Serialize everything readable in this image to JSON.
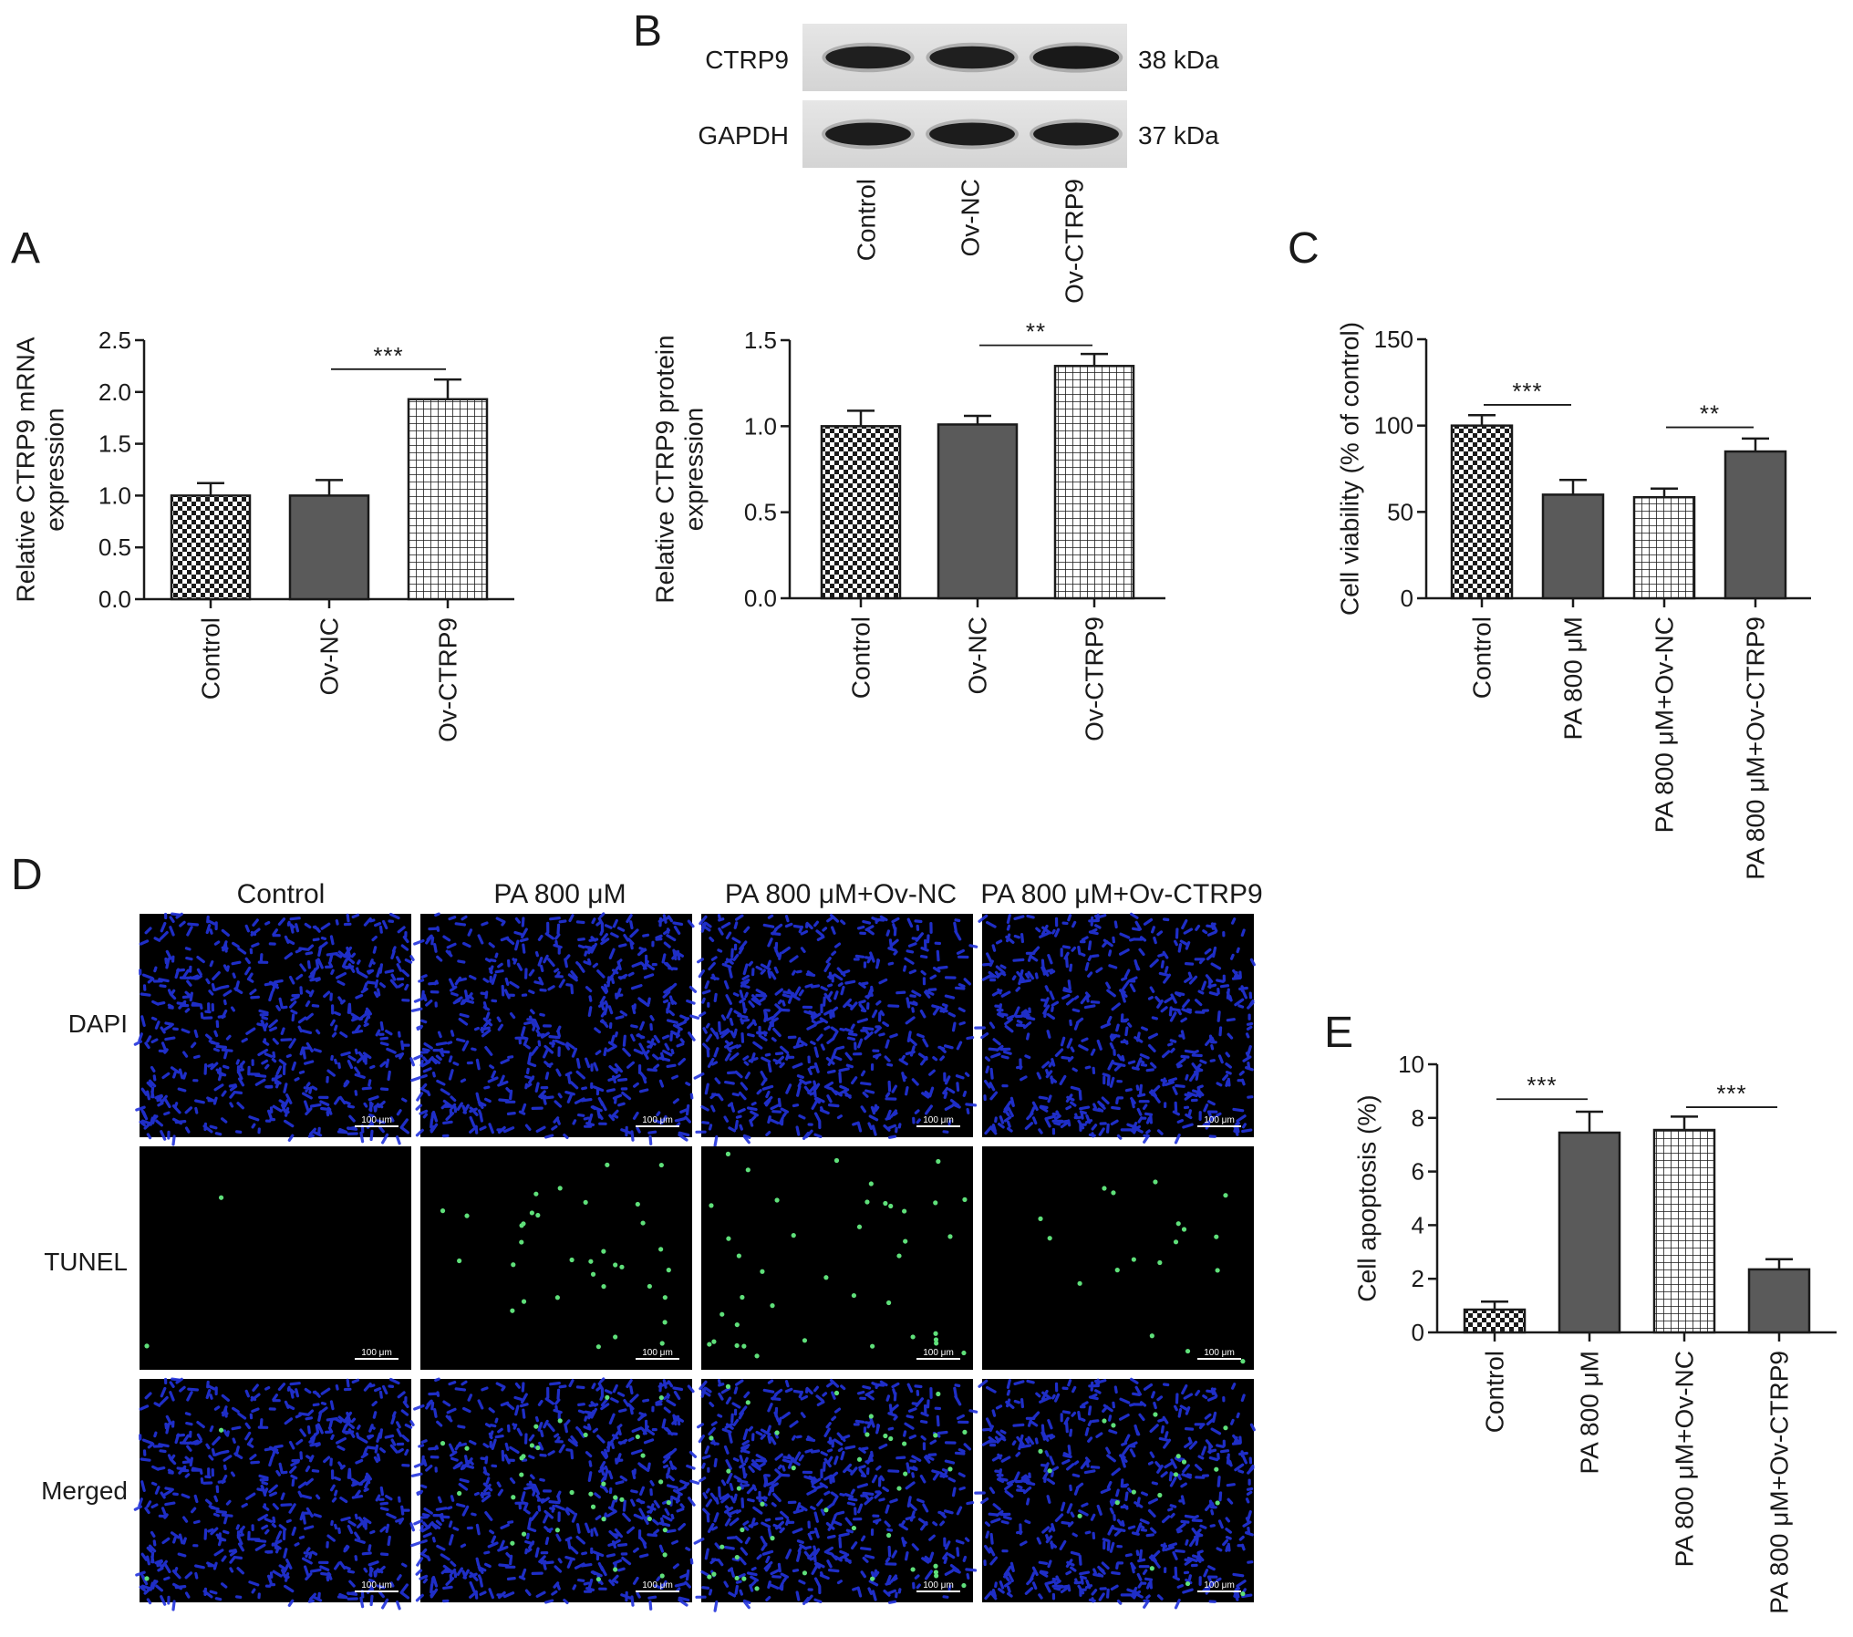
{
  "figure": {
    "colors": {
      "dark_bar": "#5a5a5a",
      "axis": "#1a1a1a",
      "dapi_blue": "#2233dd",
      "tunel_green": "#5fe07a",
      "micro_bg": "#000000"
    },
    "panel_letters": {
      "A": "A",
      "B": "B",
      "C": "C",
      "D": "D",
      "E": "E"
    },
    "western_blot": {
      "bands": [
        {
          "protein": "CTRP9",
          "size": "38 kDa",
          "intensities": [
            0.9,
            0.9,
            1.0
          ]
        },
        {
          "protein": "GAPDH",
          "size": "37 kDa",
          "intensities": [
            0.95,
            0.95,
            0.95
          ]
        }
      ],
      "lanes": [
        "Control",
        "Ov-NC",
        "Ov-CTRP9"
      ]
    },
    "microscopy": {
      "columns": [
        "Control",
        "PA 800 μM",
        "PA 800 μM+Ov-NC",
        "PA 800 μM+Ov-CTRP9"
      ],
      "rows": [
        "DAPI",
        "TUNEL",
        "Merged"
      ],
      "scale_bar": "100 μm",
      "tunel_positive_counts": [
        2,
        34,
        40,
        18
      ]
    }
  },
  "chart_data": [
    {
      "id": "A",
      "type": "bar",
      "categories": [
        "Control",
        "Ov-NC",
        "Ov-CTRP9"
      ],
      "values": [
        1.0,
        1.0,
        1.93
      ],
      "errors": [
        0.12,
        0.15,
        0.19
      ],
      "patterns": [
        "checker",
        "solid",
        "grid"
      ],
      "ylabel_lines": [
        "Relative CTRP9 mRNA",
        "expression"
      ],
      "ylim": [
        0,
        2.5
      ],
      "yticks": [
        "0.0",
        "0.5",
        "1.0",
        "1.5",
        "2.0",
        "2.5"
      ],
      "significance": [
        {
          "from": 1,
          "to": 2,
          "label": "***",
          "y": 2.22
        }
      ]
    },
    {
      "id": "B",
      "type": "bar",
      "categories": [
        "Control",
        "Ov-NC",
        "Ov-CTRP9"
      ],
      "values": [
        1.0,
        1.01,
        1.35
      ],
      "errors": [
        0.09,
        0.05,
        0.07
      ],
      "patterns": [
        "checker",
        "solid",
        "grid"
      ],
      "ylabel_lines": [
        "Relative CTRP9 protein",
        "expression"
      ],
      "ylim": [
        0,
        1.5
      ],
      "yticks": [
        "0.0",
        "0.5",
        "1.0",
        "1.5"
      ],
      "significance": [
        {
          "from": 1,
          "to": 2,
          "label": "**",
          "y": 1.47
        }
      ]
    },
    {
      "id": "C",
      "type": "bar",
      "categories": [
        "Control",
        "PA 800 μM",
        "PA 800 μM+Ov-NC",
        "PA 800 μM+Ov-CTRP9"
      ],
      "values": [
        100,
        60,
        58.5,
        85
      ],
      "errors": [
        6,
        8.5,
        5,
        7.5
      ],
      "patterns": [
        "checker",
        "solid",
        "grid",
        "solid"
      ],
      "ylabel_lines": [
        "Cell viability (% of control)"
      ],
      "ylim": [
        0,
        150
      ],
      "yticks": [
        "0",
        "50",
        "100",
        "150"
      ],
      "significance": [
        {
          "from": 0,
          "to": 1,
          "label": "***",
          "y": 112
        },
        {
          "from": 2,
          "to": 3,
          "label": "**",
          "y": 99
        }
      ]
    },
    {
      "id": "E",
      "type": "bar",
      "categories": [
        "Control",
        "PA 800 μM",
        "PA 800 μM+Ov-NC",
        "PA 800 μM+Ov-CTRP9"
      ],
      "values": [
        0.85,
        7.45,
        7.55,
        2.35
      ],
      "errors": [
        0.3,
        0.78,
        0.5,
        0.38
      ],
      "patterns": [
        "checker",
        "solid",
        "grid",
        "solid"
      ],
      "ylabel_lines": [
        "Cell apoptosis (%)"
      ],
      "ylim": [
        0,
        10
      ],
      "yticks": [
        "0",
        "2",
        "4",
        "6",
        "8",
        "10"
      ],
      "significance": [
        {
          "from": 0,
          "to": 1,
          "label": "***",
          "y": 8.7
        },
        {
          "from": 2,
          "to": 3,
          "label": "***",
          "y": 8.4
        }
      ]
    }
  ]
}
